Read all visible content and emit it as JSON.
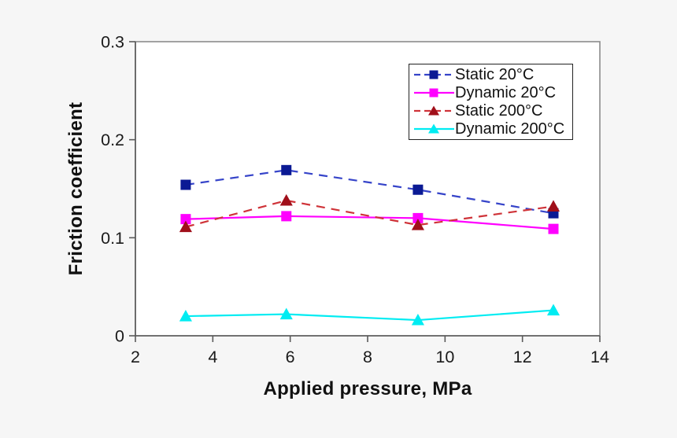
{
  "chart_data": {
    "type": "line",
    "title": "",
    "xlabel": "Applied pressure, MPa",
    "ylabel": "Friction coefficient",
    "xlim": [
      2,
      14
    ],
    "ylim": [
      0,
      0.3
    ],
    "xticks": [
      2,
      4,
      6,
      8,
      10,
      12,
      14
    ],
    "yticks": [
      0,
      0.1,
      0.2,
      0.3
    ],
    "ytick_labels": [
      "0",
      "0.1",
      "0.2",
      "0.3"
    ],
    "grid": false,
    "legend_position": "upper-right-inside",
    "x": [
      3.3,
      5.9,
      9.3,
      12.8
    ],
    "series": [
      {
        "name": "Static 20°C",
        "values": [
          0.154,
          0.169,
          0.149,
          0.125
        ],
        "line_color": "#3644c9",
        "marker_color": "#0b1a94",
        "line_style": "dashed",
        "marker": "square"
      },
      {
        "name": "Dynamic 20°C",
        "values": [
          0.119,
          0.122,
          0.12,
          0.109
        ],
        "line_color": "#ff00ff",
        "marker_color": "#ff00ff",
        "line_style": "solid",
        "marker": "square"
      },
      {
        "name": "Static 200°C",
        "values": [
          0.111,
          0.138,
          0.113,
          0.132
        ],
        "line_color": "#cf3339",
        "marker_color": "#a00f1a",
        "line_style": "dashed",
        "marker": "triangle"
      },
      {
        "name": "Dynamic 200°C",
        "values": [
          0.02,
          0.022,
          0.016,
          0.026
        ],
        "line_color": "#00ecf2",
        "marker_color": "#00ecf2",
        "line_style": "solid",
        "marker": "triangle"
      }
    ]
  },
  "colors": {
    "background": "#f6f6f6",
    "plot_background": "#ffffff",
    "plot_border": "#8c8c8c",
    "axis": "#5a5a5a",
    "tick_text": "#1a1a1a"
  }
}
